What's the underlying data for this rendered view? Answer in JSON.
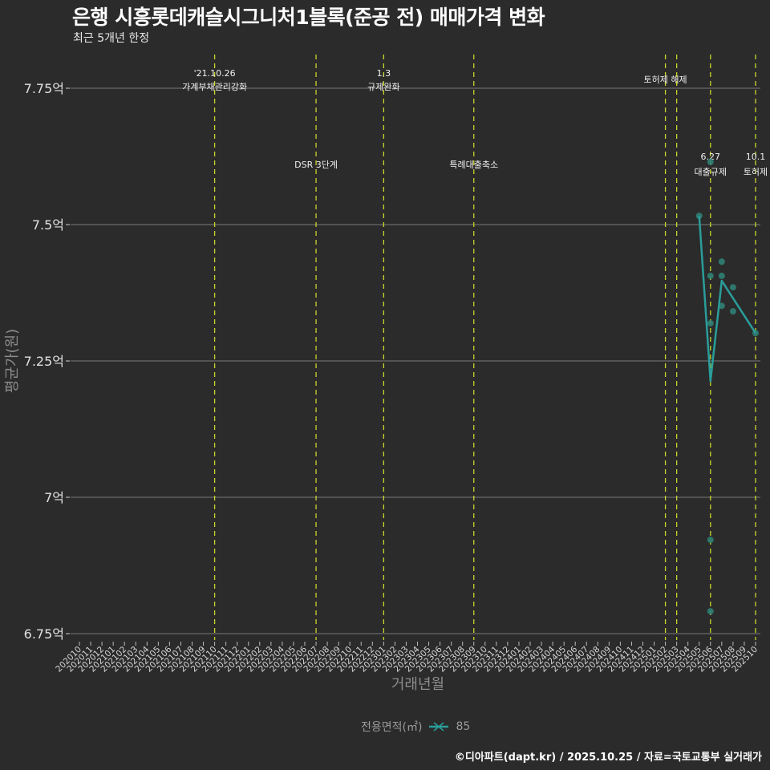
{
  "header": {
    "title": "은행 시흥롯데캐슬시그니처1블록(준공 전) 매매가격 변화",
    "subtitle": "최근 5개년 한정"
  },
  "legend": {
    "title": "전용면적(㎡)",
    "items": [
      {
        "label": "85",
        "color": "#2a9d9a"
      }
    ]
  },
  "footer": "©디아파트(dapt.kr) / 2025.10.25 / 자료=국토교통부 실거래가",
  "colors": {
    "background": "#2b2b2b",
    "series": "#2a9d9a",
    "points": "#2f7f74",
    "event_line": "#c8d62c",
    "grid": "#6a6a6a"
  },
  "chart_data": {
    "type": "line",
    "title": "은행 시흥롯데캐슬시그니처1블록(준공 전) 매매가격 변화",
    "subtitle": "최근 5개년 한정",
    "xlabel": "거래년월",
    "ylabel": "평균가(원)",
    "ylim": [
      6.75,
      7.78
    ],
    "y_ticks": [
      {
        "value": 6.75,
        "label": "6.75억"
      },
      {
        "value": 7.0,
        "label": "7억"
      },
      {
        "value": 7.25,
        "label": "7.25억"
      },
      {
        "value": 7.5,
        "label": "7.5억"
      },
      {
        "value": 7.75,
        "label": "7.75억"
      }
    ],
    "x_categories": [
      "202010",
      "202011",
      "202012",
      "202101",
      "202102",
      "202103",
      "202104",
      "202105",
      "202106",
      "202107",
      "202108",
      "202109",
      "202110",
      "202111",
      "202112",
      "202201",
      "202202",
      "202203",
      "202204",
      "202205",
      "202206",
      "202207",
      "202208",
      "202209",
      "202210",
      "202211",
      "202212",
      "202301",
      "202302",
      "202303",
      "202304",
      "202305",
      "202306",
      "202307",
      "202308",
      "202309",
      "202310",
      "202311",
      "202312",
      "202401",
      "202402",
      "202403",
      "202404",
      "202405",
      "202406",
      "202407",
      "202408",
      "202409",
      "202410",
      "202411",
      "202412",
      "202501",
      "202502",
      "202503",
      "202504",
      "202505",
      "202506",
      "202507",
      "202508",
      "202509",
      "202510"
    ],
    "grid": true,
    "legend_position": "bottom",
    "series": [
      {
        "name": "85",
        "line": [
          {
            "x": "202505",
            "y": 7.516
          },
          {
            "x": "202506",
            "y": 7.213
          },
          {
            "x": "202507",
            "y": 7.397
          },
          {
            "x": "202510",
            "y": 7.301
          }
        ],
        "points": [
          {
            "x": "202505",
            "y": 7.516
          },
          {
            "x": "202506",
            "y": 7.615
          },
          {
            "x": "202506",
            "y": 7.406
          },
          {
            "x": "202506",
            "y": 7.319
          },
          {
            "x": "202506",
            "y": 6.922
          },
          {
            "x": "202506",
            "y": 6.791
          },
          {
            "x": "202507",
            "y": 7.432
          },
          {
            "x": "202507",
            "y": 7.406
          },
          {
            "x": "202507",
            "y": 7.351
          },
          {
            "x": "202508",
            "y": 7.385
          },
          {
            "x": "202508",
            "y": 7.341
          },
          {
            "x": "202510",
            "y": 7.301
          }
        ]
      }
    ],
    "events": [
      {
        "x": "202110",
        "label_top": "'21.10.26",
        "label_bottom": "가계부채관리강화",
        "row": "top"
      },
      {
        "x": "202207",
        "label_top": "",
        "label_bottom": "DSR 3단계",
        "row": "mid"
      },
      {
        "x": "202301",
        "label_top": "1.3",
        "label_bottom": "규제완화",
        "row": "top"
      },
      {
        "x": "202309",
        "label_top": "",
        "label_bottom": "특례대출축소",
        "row": "mid"
      },
      {
        "x": "202502",
        "label_top": "",
        "label_bottom": "토허제 해제",
        "row": "top2"
      },
      {
        "x": "202503",
        "label_top": "",
        "label_bottom": "",
        "row": "none"
      },
      {
        "x": "202506",
        "label_top": "6.27",
        "label_bottom": "대출규제",
        "row": "mid"
      },
      {
        "x": "202510",
        "label_top": "10.1",
        "label_bottom": "토허제",
        "row": "mid"
      }
    ]
  }
}
